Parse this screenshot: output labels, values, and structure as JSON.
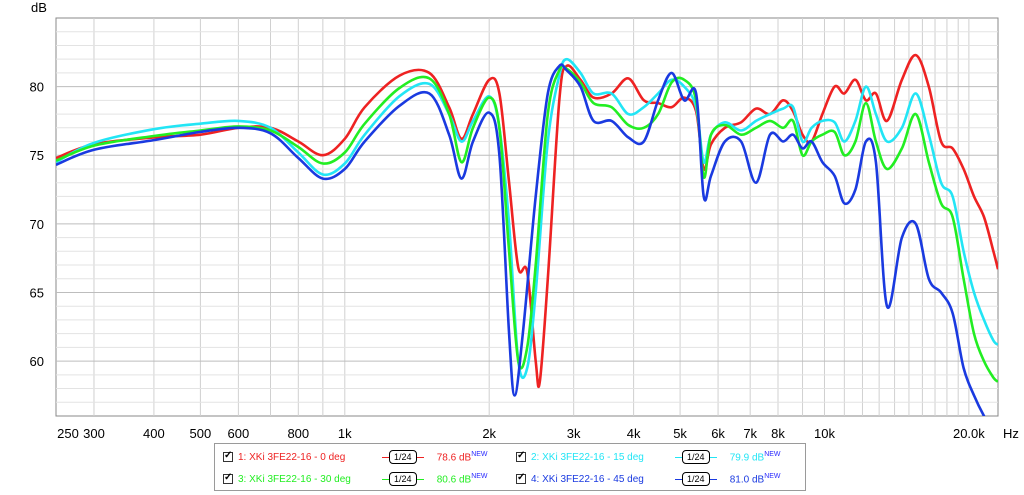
{
  "chart_data": {
    "type": "line",
    "ylabel": "dB",
    "xlabel": "Hz",
    "x_scale": "log",
    "xlim": [
      250,
      23000
    ],
    "ylim": [
      56,
      85
    ],
    "grid": true,
    "x_tick_labels": [
      {
        "v": 250,
        "t": "250"
      },
      {
        "v": 300,
        "t": "300"
      },
      {
        "v": 400,
        "t": "400"
      },
      {
        "v": 500,
        "t": "500"
      },
      {
        "v": 600,
        "t": "600"
      },
      {
        "v": 800,
        "t": "800"
      },
      {
        "v": 1000,
        "t": "1k"
      },
      {
        "v": 2000,
        "t": "2k"
      },
      {
        "v": 3000,
        "t": "3k"
      },
      {
        "v": 4000,
        "t": "4k"
      },
      {
        "v": 5000,
        "t": "5k"
      },
      {
        "v": 6000,
        "t": "6k"
      },
      {
        "v": 7000,
        "t": "7k"
      },
      {
        "v": 8000,
        "t": "8k"
      },
      {
        "v": 10000,
        "t": "10k"
      },
      {
        "v": 20000,
        "t": "20.0k"
      }
    ],
    "y_tick_labels": [
      60,
      65,
      70,
      75,
      80
    ],
    "series": [
      {
        "name": "1: XKi 3FE22-16 - 0 deg",
        "color": "#ee2222",
        "smoothing": "1/24",
        "level": "78.6 dB",
        "points": [
          [
            250,
            74.8
          ],
          [
            300,
            75.8
          ],
          [
            400,
            76.3
          ],
          [
            500,
            76.5
          ],
          [
            600,
            77.0
          ],
          [
            700,
            77.0
          ],
          [
            800,
            76.0
          ],
          [
            900,
            75.0
          ],
          [
            1000,
            76.2
          ],
          [
            1100,
            78.5
          ],
          [
            1300,
            80.8
          ],
          [
            1500,
            81.0
          ],
          [
            1650,
            78.5
          ],
          [
            1750,
            76.2
          ],
          [
            1850,
            78.0
          ],
          [
            2000,
            80.5
          ],
          [
            2100,
            79.5
          ],
          [
            2200,
            73.0
          ],
          [
            2300,
            66.8
          ],
          [
            2400,
            66.5
          ],
          [
            2500,
            60.0
          ],
          [
            2550,
            58.5
          ],
          [
            2650,
            66.0
          ],
          [
            2800,
            79.0
          ],
          [
            2900,
            81.5
          ],
          [
            3100,
            80.5
          ],
          [
            3300,
            79.2
          ],
          [
            3600,
            79.5
          ],
          [
            3900,
            80.6
          ],
          [
            4200,
            79.0
          ],
          [
            4500,
            78.8
          ],
          [
            4800,
            78.5
          ],
          [
            5100,
            79.2
          ],
          [
            5400,
            78.2
          ],
          [
            5600,
            74.0
          ],
          [
            5800,
            75.8
          ],
          [
            6200,
            77.0
          ],
          [
            6700,
            77.4
          ],
          [
            7200,
            78.4
          ],
          [
            7700,
            78.0
          ],
          [
            8200,
            79.0
          ],
          [
            8600,
            78.2
          ],
          [
            9000,
            76.5
          ],
          [
            9400,
            76.0
          ],
          [
            9900,
            78.0
          ],
          [
            10500,
            80.0
          ],
          [
            11000,
            79.5
          ],
          [
            11600,
            80.5
          ],
          [
            12200,
            79.0
          ],
          [
            12800,
            79.5
          ],
          [
            13500,
            77.5
          ],
          [
            14500,
            80.5
          ],
          [
            15500,
            82.3
          ],
          [
            16500,
            80.0
          ],
          [
            17500,
            76.0
          ],
          [
            18500,
            75.5
          ],
          [
            19500,
            74.0
          ],
          [
            20500,
            72.0
          ],
          [
            21500,
            70.5
          ],
          [
            22500,
            68.0
          ],
          [
            23000,
            66.7
          ]
        ]
      },
      {
        "name": "2: XKi 3FE22-16 - 15 deg",
        "color": "#22e5f5",
        "smoothing": "1/24",
        "level": "79.9 dB",
        "points": [
          [
            250,
            74.5
          ],
          [
            300,
            75.9
          ],
          [
            400,
            76.9
          ],
          [
            500,
            77.3
          ],
          [
            600,
            77.5
          ],
          [
            700,
            77.0
          ],
          [
            800,
            75.2
          ],
          [
            900,
            73.6
          ],
          [
            1000,
            74.4
          ],
          [
            1100,
            76.5
          ],
          [
            1300,
            79.3
          ],
          [
            1500,
            80.2
          ],
          [
            1650,
            78.0
          ],
          [
            1750,
            76.0
          ],
          [
            1850,
            77.5
          ],
          [
            2000,
            79.3
          ],
          [
            2100,
            77.0
          ],
          [
            2200,
            70.0
          ],
          [
            2300,
            60.0
          ],
          [
            2400,
            59.5
          ],
          [
            2500,
            65.0
          ],
          [
            2650,
            76.0
          ],
          [
            2800,
            80.8
          ],
          [
            2900,
            82.0
          ],
          [
            3100,
            81.0
          ],
          [
            3300,
            79.5
          ],
          [
            3600,
            79.5
          ],
          [
            3900,
            78.0
          ],
          [
            4200,
            78.5
          ],
          [
            4500,
            79.5
          ],
          [
            4800,
            80.5
          ],
          [
            5100,
            80.0
          ],
          [
            5400,
            78.5
          ],
          [
            5600,
            74.5
          ],
          [
            5800,
            76.5
          ],
          [
            6200,
            77.4
          ],
          [
            6700,
            76.8
          ],
          [
            7200,
            77.5
          ],
          [
            7700,
            78.0
          ],
          [
            8200,
            78.4
          ],
          [
            8600,
            78.5
          ],
          [
            9000,
            76.0
          ],
          [
            9400,
            77.0
          ],
          [
            9900,
            77.5
          ],
          [
            10500,
            77.4
          ],
          [
            11000,
            76.0
          ],
          [
            11600,
            77.5
          ],
          [
            12200,
            80.0
          ],
          [
            12800,
            78.0
          ],
          [
            13500,
            76.0
          ],
          [
            14500,
            77.0
          ],
          [
            15500,
            79.5
          ],
          [
            16500,
            76.5
          ],
          [
            17500,
            73.0
          ],
          [
            18500,
            72.0
          ],
          [
            19500,
            68.0
          ],
          [
            20500,
            65.0
          ],
          [
            21500,
            63.0
          ],
          [
            22500,
            61.5
          ],
          [
            23000,
            61.2
          ]
        ]
      },
      {
        "name": "3: XKi 3FE22-16 - 30 deg",
        "color": "#22ee22",
        "smoothing": "1/24",
        "level": "80.6 dB",
        "points": [
          [
            250,
            74.6
          ],
          [
            300,
            75.7
          ],
          [
            400,
            76.4
          ],
          [
            500,
            76.8
          ],
          [
            600,
            77.1
          ],
          [
            700,
            76.8
          ],
          [
            800,
            75.6
          ],
          [
            900,
            74.4
          ],
          [
            1000,
            75.2
          ],
          [
            1100,
            77.3
          ],
          [
            1300,
            79.9
          ],
          [
            1500,
            80.6
          ],
          [
            1650,
            78.0
          ],
          [
            1750,
            74.5
          ],
          [
            1850,
            77.0
          ],
          [
            2000,
            79.2
          ],
          [
            2100,
            77.0
          ],
          [
            2200,
            68.0
          ],
          [
            2300,
            60.0
          ],
          [
            2400,
            61.0
          ],
          [
            2500,
            67.0
          ],
          [
            2650,
            78.0
          ],
          [
            2800,
            81.2
          ],
          [
            2900,
            81.3
          ],
          [
            3100,
            80.3
          ],
          [
            3300,
            78.8
          ],
          [
            3600,
            78.5
          ],
          [
            3900,
            77.2
          ],
          [
            4200,
            77.0
          ],
          [
            4500,
            78.0
          ],
          [
            4800,
            80.3
          ],
          [
            5100,
            80.5
          ],
          [
            5400,
            79.0
          ],
          [
            5600,
            73.4
          ],
          [
            5800,
            76.5
          ],
          [
            6200,
            77.2
          ],
          [
            6700,
            76.5
          ],
          [
            7200,
            77.0
          ],
          [
            7700,
            77.5
          ],
          [
            8200,
            77.0
          ],
          [
            8600,
            77.5
          ],
          [
            9000,
            75.0
          ],
          [
            9400,
            76.0
          ],
          [
            9900,
            76.5
          ],
          [
            10500,
            76.7
          ],
          [
            11000,
            75.0
          ],
          [
            11600,
            76.0
          ],
          [
            12200,
            78.8
          ],
          [
            12800,
            76.0
          ],
          [
            13500,
            74.0
          ],
          [
            14500,
            75.5
          ],
          [
            15500,
            78.0
          ],
          [
            16500,
            74.5
          ],
          [
            17500,
            71.5
          ],
          [
            18500,
            70.5
          ],
          [
            19500,
            66.0
          ],
          [
            20500,
            62.0
          ],
          [
            21500,
            60.0
          ],
          [
            22500,
            58.8
          ],
          [
            23000,
            58.5
          ]
        ]
      },
      {
        "name": "4: XKi 3FE22-16 - 45 deg",
        "color": "#1a3ae0",
        "smoothing": "1/24",
        "level": "81.0 dB",
        "points": [
          [
            250,
            74.3
          ],
          [
            300,
            75.4
          ],
          [
            400,
            76.1
          ],
          [
            500,
            76.7
          ],
          [
            600,
            77.0
          ],
          [
            700,
            76.6
          ],
          [
            800,
            74.8
          ],
          [
            900,
            73.3
          ],
          [
            1000,
            74.0
          ],
          [
            1100,
            76.0
          ],
          [
            1300,
            78.6
          ],
          [
            1500,
            79.5
          ],
          [
            1650,
            76.5
          ],
          [
            1750,
            73.3
          ],
          [
            1850,
            76.0
          ],
          [
            2000,
            78.1
          ],
          [
            2100,
            75.0
          ],
          [
            2200,
            62.0
          ],
          [
            2260,
            57.5
          ],
          [
            2350,
            62.0
          ],
          [
            2500,
            72.0
          ],
          [
            2650,
            79.5
          ],
          [
            2800,
            81.5
          ],
          [
            2900,
            81.2
          ],
          [
            3100,
            80.0
          ],
          [
            3300,
            77.5
          ],
          [
            3600,
            77.5
          ],
          [
            3900,
            76.3
          ],
          [
            4200,
            76.0
          ],
          [
            4500,
            79.0
          ],
          [
            4800,
            81.0
          ],
          [
            5100,
            79.0
          ],
          [
            5400,
            79.5
          ],
          [
            5600,
            72.0
          ],
          [
            5800,
            73.5
          ],
          [
            6200,
            76.0
          ],
          [
            6700,
            76.0
          ],
          [
            7200,
            73.0
          ],
          [
            7700,
            76.5
          ],
          [
            8200,
            76.0
          ],
          [
            8600,
            76.5
          ],
          [
            9000,
            75.5
          ],
          [
            9400,
            76.0
          ],
          [
            9900,
            74.5
          ],
          [
            10500,
            73.5
          ],
          [
            11000,
            71.5
          ],
          [
            11600,
            72.5
          ],
          [
            12200,
            76.0
          ],
          [
            12800,
            74.5
          ],
          [
            13500,
            64.0
          ],
          [
            14500,
            69.0
          ],
          [
            15500,
            70.0
          ],
          [
            16500,
            66.0
          ],
          [
            17500,
            65.0
          ],
          [
            18500,
            63.5
          ],
          [
            19500,
            59.5
          ],
          [
            20500,
            57.5
          ],
          [
            21500,
            56.0
          ],
          [
            22000,
            55.5
          ]
        ]
      }
    ]
  }
}
